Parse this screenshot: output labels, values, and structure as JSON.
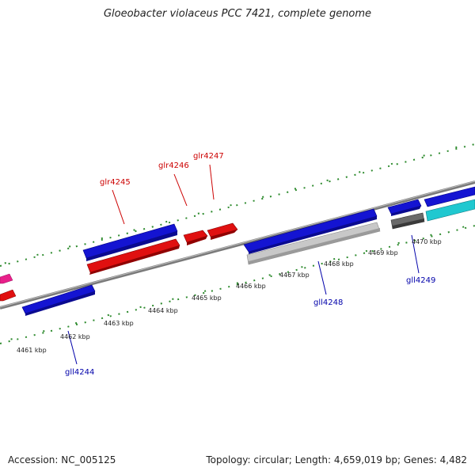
{
  "title": "Gloeobacter violaceus PCC 7421, complete genome",
  "footer": {
    "accession": "Accession: NC_005125",
    "summary": "Topology: circular; Length: 4,659,019 bp; Genes: 4,482"
  },
  "colors": {
    "backbone": "#8a8a8a",
    "tick": "#2e8b2e",
    "forward_label": "#cc0000",
    "reverse_label": "#0000aa",
    "blue_gene": "#1414d2",
    "red_gene": "#e01010",
    "pink_gene": "#e8208a",
    "gray_gene": "#c4c4c4",
    "darkgray_gene": "#606060",
    "cyan_gene": "#20c8d0"
  },
  "kbp_labels": [
    "4461 kbp",
    "4462 kbp",
    "4463 kbp",
    "4464 kbp",
    "4465 kbp",
    "4466 kbp",
    "4467 kbp",
    "4468 kbp",
    "4469 kbp",
    "4470 kbp"
  ],
  "gene_labels": {
    "gll4244": "gll4244",
    "glr4245": "glr4245",
    "glr4246": "glr4246",
    "glr4247": "glr4247",
    "gll4248": "gll4248",
    "gll4249": "gll4249"
  }
}
